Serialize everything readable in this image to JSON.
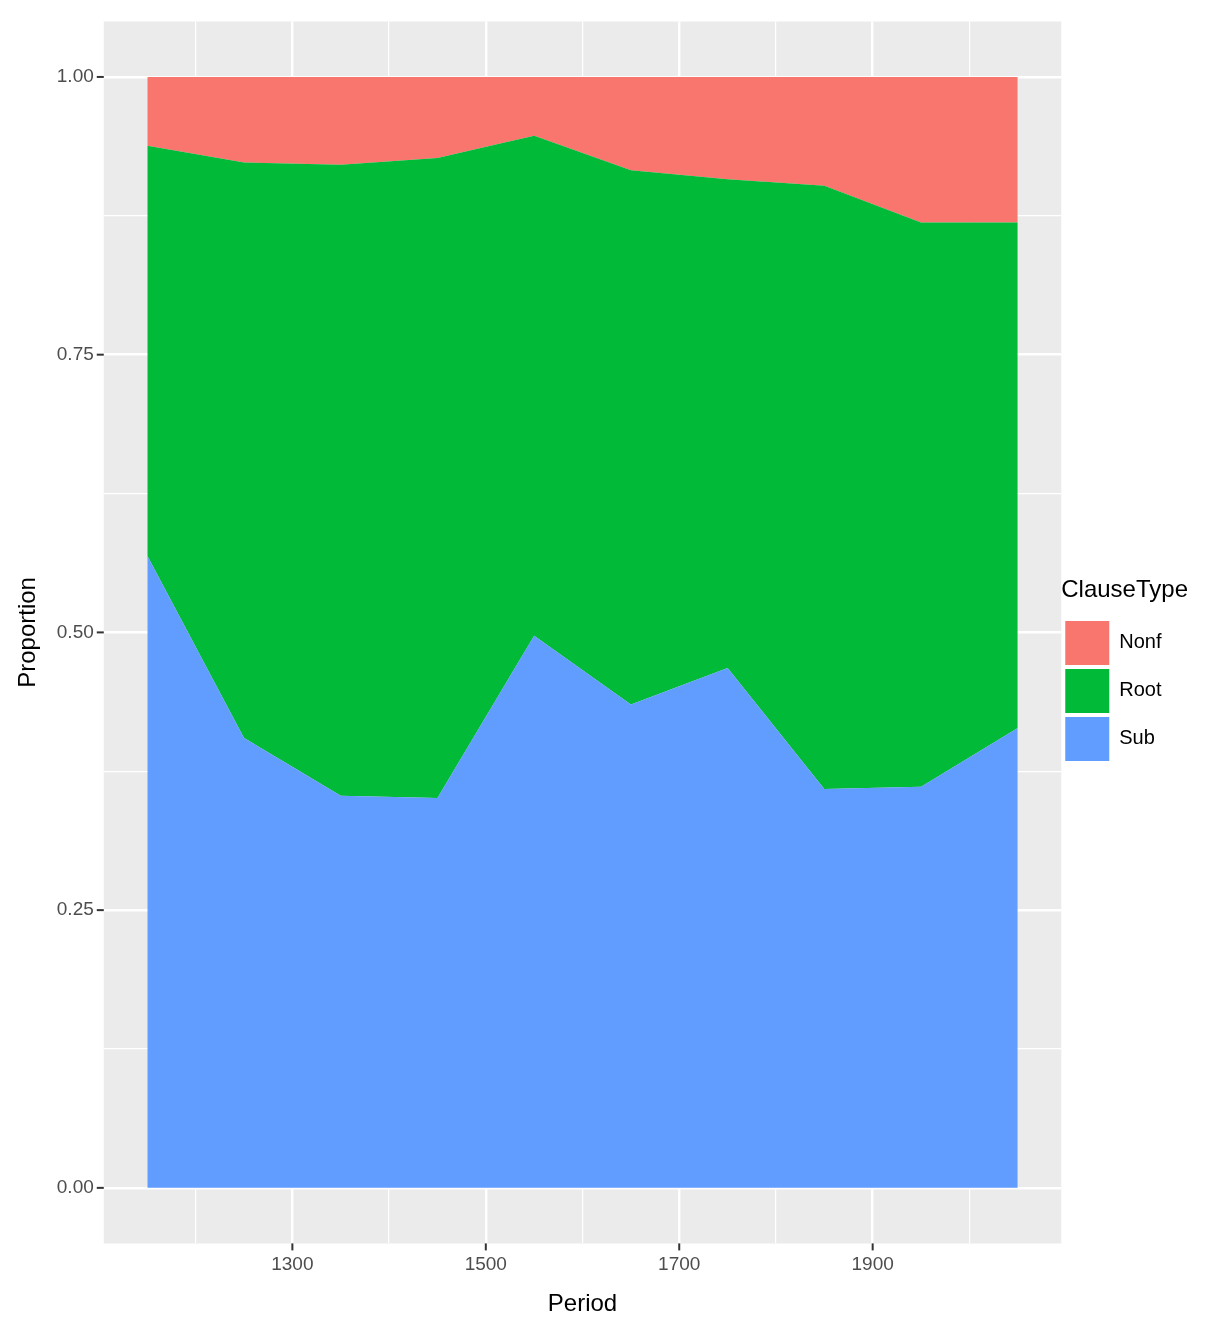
{
  "chart_data": {
    "type": "area",
    "xlabel": "Period",
    "ylabel": "Proportion",
    "legend_title": "ClauseType",
    "stacked": true,
    "x": [
      1150,
      1250,
      1350,
      1450,
      1550,
      1650,
      1750,
      1850,
      1950,
      2050
    ],
    "series": [
      {
        "name": "Sub",
        "color": "#619cff",
        "values": [
          0.569,
          0.405,
          0.353,
          0.351,
          0.497,
          0.435,
          0.468,
          0.359,
          0.361,
          0.414
        ]
      },
      {
        "name": "Root",
        "color": "#00ba38",
        "values": [
          0.369,
          0.518,
          0.568,
          0.576,
          0.45,
          0.481,
          0.44,
          0.543,
          0.508,
          0.455
        ]
      },
      {
        "name": "Nonf",
        "color": "#f8766d",
        "values": [
          0.062,
          0.077,
          0.079,
          0.073,
          0.053,
          0.084,
          0.092,
          0.098,
          0.131,
          0.131
        ]
      }
    ],
    "xlim": [
      1105,
      2095
    ],
    "xticks": [
      {
        "value": 1200,
        "label": null
      },
      1300,
      {
        "value": 1400,
        "label": null
      },
      1500,
      {
        "value": 1600,
        "label": null
      },
      1700,
      {
        "value": 1800,
        "label": null
      },
      1900,
      {
        "value": 2000,
        "label": null
      }
    ],
    "ylim": [
      -0.05,
      1.05
    ],
    "yticks": [
      {
        "value": 0,
        "label": "0.00"
      },
      {
        "value": 0.125,
        "label": null
      },
      {
        "value": 0.25,
        "label": "0.25"
      },
      {
        "value": 0.375,
        "label": null
      },
      {
        "value": 0.5,
        "label": "0.50"
      },
      {
        "value": 0.625,
        "label": null
      },
      {
        "value": 0.75,
        "label": "0.75"
      },
      {
        "value": 0.875,
        "label": null
      },
      {
        "value": 1,
        "label": "1.00"
      }
    ],
    "grid": true,
    "legend": "right"
  }
}
